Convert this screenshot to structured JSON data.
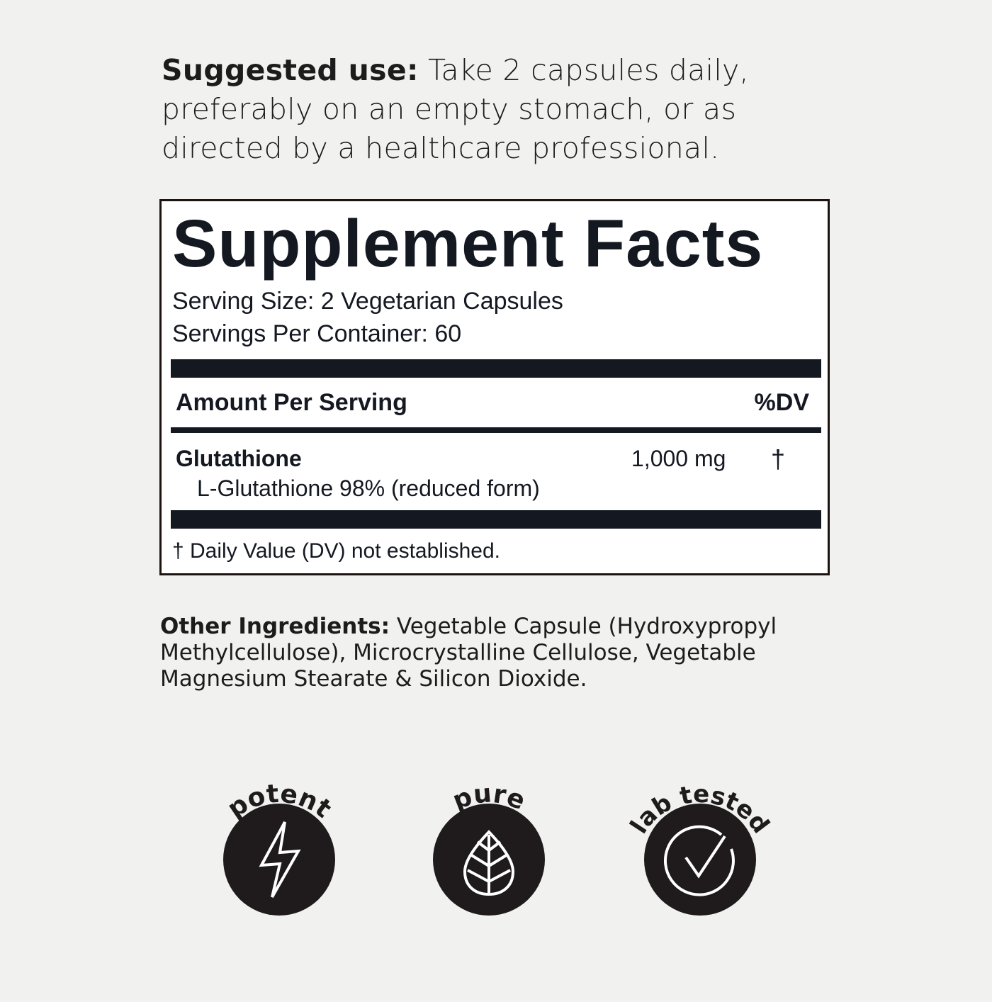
{
  "suggested_use": {
    "label": "Suggested use:",
    "text": " Take 2 capsules daily, preferably on an empty stomach, or as directed by a healthcare professional."
  },
  "facts": {
    "title": "Supplement Facts",
    "serving_size": "Serving Size: 2 Vegetarian Capsules",
    "servings_per_container": "Servings Per Container: 60",
    "amount_header": "Amount Per Serving",
    "dv_header": "%DV",
    "ingredients": [
      {
        "name": "Glutathione",
        "sub": "L-Glutathione 98% (reduced form)",
        "amount": "1,000 mg",
        "dv": "†"
      }
    ],
    "footnote": "† Daily Value (DV) not established."
  },
  "other_ingredients": {
    "label": "Other Ingredients:",
    "text": " Vegetable Capsule (Hydroxypropyl Methylcellulose), Microcrystalline Cellulose, Vegetable Magnesium Stearate & Silicon Dioxide."
  },
  "badges": [
    {
      "label": "potent",
      "icon": "lightning-icon"
    },
    {
      "label": "pure",
      "icon": "leaf-icon"
    },
    {
      "label": "lab tested",
      "icon": "check-circle-icon"
    }
  ],
  "colors": {
    "background": "#f1f1ef",
    "text": "#141821",
    "badge": "#1f1b1c"
  }
}
